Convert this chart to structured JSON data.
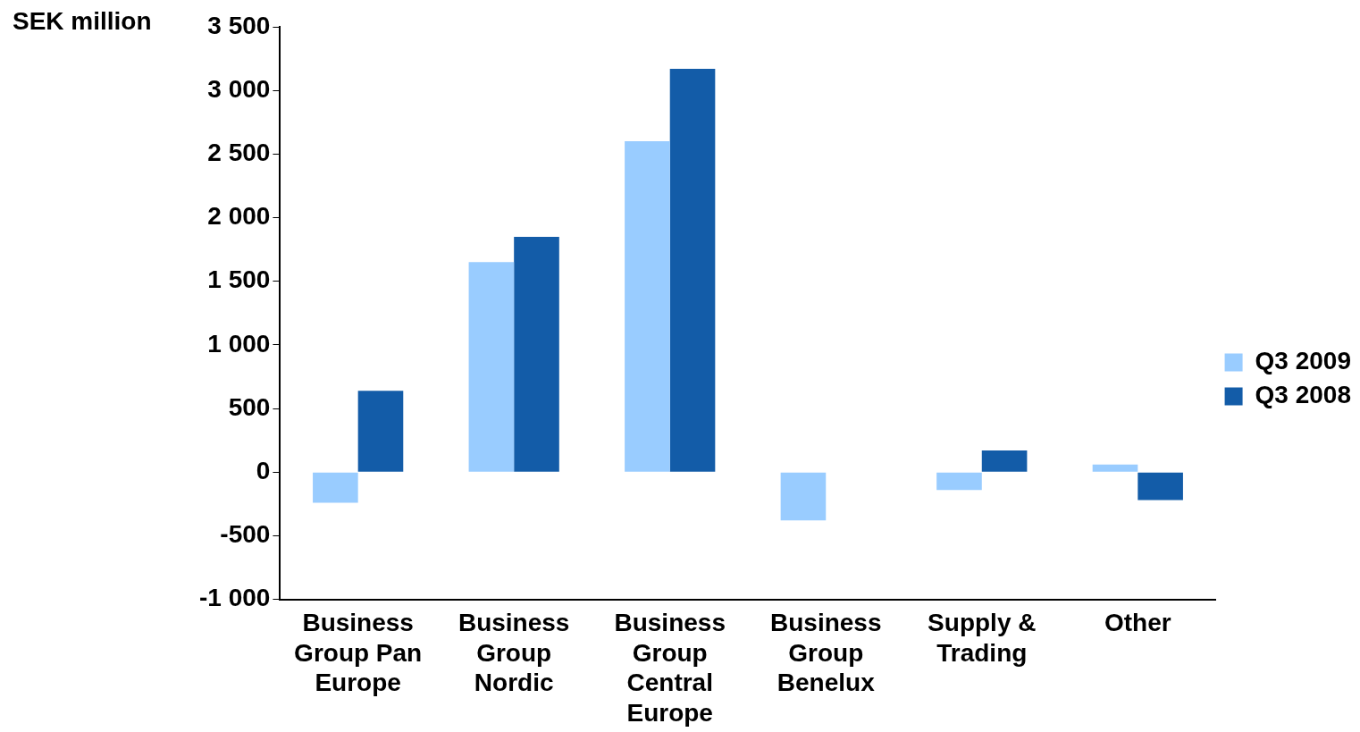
{
  "chart_data": {
    "type": "bar",
    "ylabel": "SEK million",
    "categories": [
      "Business Group Pan Europe",
      "Business Group Nordic",
      "Business Group Central Europe",
      "Business Group Benelux",
      "Supply & Trading",
      "Other"
    ],
    "series": [
      {
        "name": "Q3 2009",
        "color": "#99ccff",
        "values": [
          -240,
          1650,
          2600,
          -380,
          -140,
          60
        ]
      },
      {
        "name": "Q3 2008",
        "color": "#135ca8",
        "values": [
          640,
          1850,
          3170,
          0,
          170,
          -220
        ]
      }
    ],
    "ylim": [
      -1000,
      3500
    ],
    "yticks": [
      {
        "value": -1000,
        "label": "-1 000"
      },
      {
        "value": -500,
        "label": "-500"
      },
      {
        "value": 0,
        "label": "0"
      },
      {
        "value": 500,
        "label": "500"
      },
      {
        "value": 1000,
        "label": "1 000"
      },
      {
        "value": 1500,
        "label": "1 500"
      },
      {
        "value": 2000,
        "label": "2 000"
      },
      {
        "value": 2500,
        "label": "2 500"
      },
      {
        "value": 3000,
        "label": "3 000"
      },
      {
        "value": 3500,
        "label": "3 500"
      }
    ],
    "grid": false,
    "legend": "right"
  }
}
